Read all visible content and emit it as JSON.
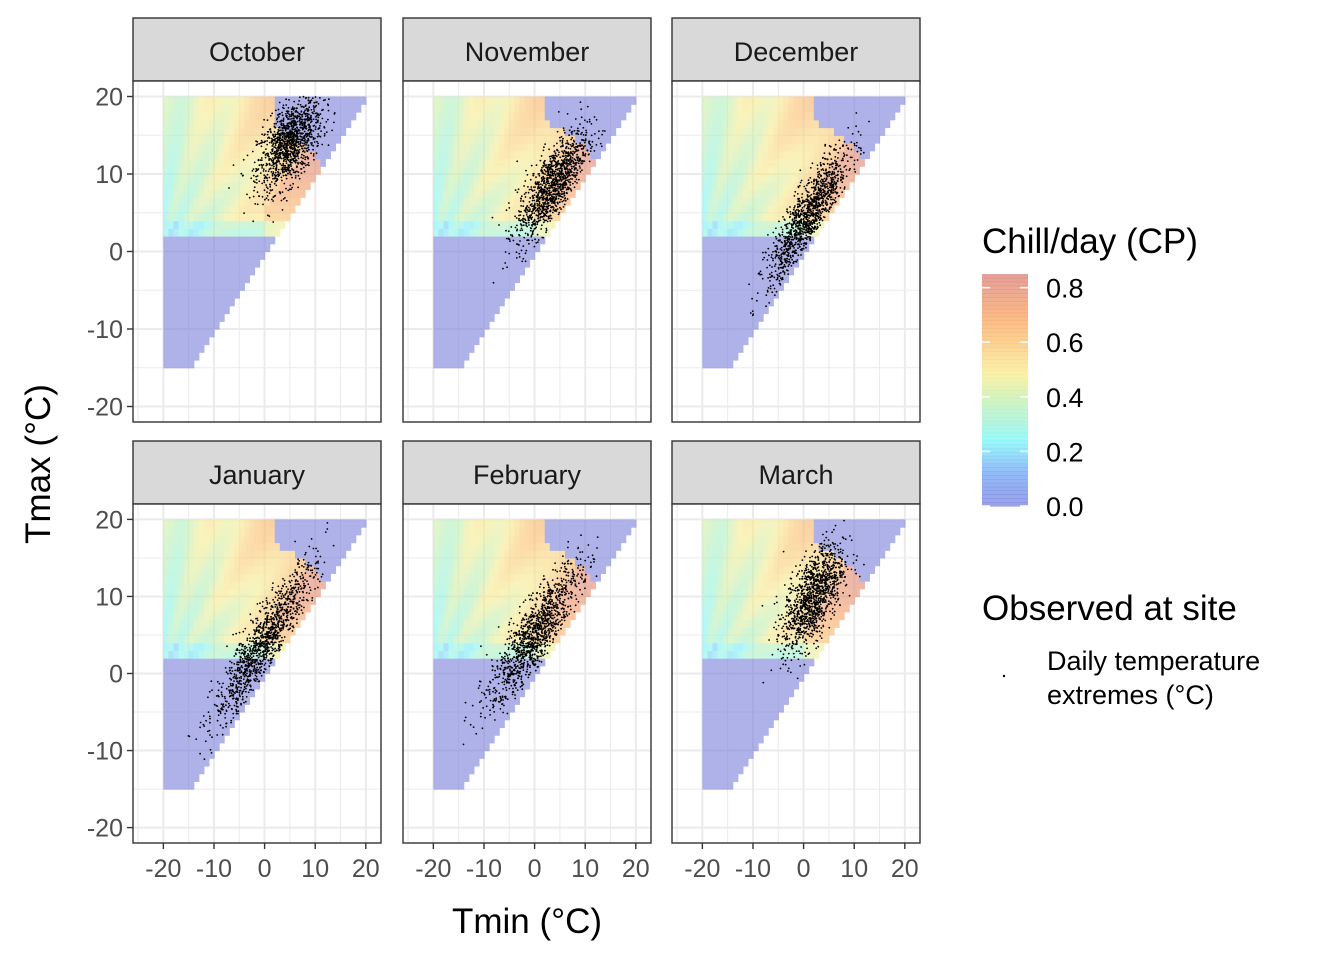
{
  "chart_data": {
    "type": "heatmap",
    "facet_labels": [
      "October",
      "November",
      "December",
      "January",
      "February",
      "March"
    ],
    "xlabel": "Tmin (°C)",
    "ylabel": "Tmax (°C)",
    "xlim": [
      -26,
      23
    ],
    "ylim": [
      -22,
      22
    ],
    "x_ticks": [
      -20,
      -10,
      0,
      10,
      20
    ],
    "x_tick_labels": [
      "-20",
      "-10",
      "0",
      "10",
      "20"
    ],
    "y_ticks": [
      -20,
      -10,
      0,
      10,
      20
    ],
    "y_tick_labels": [
      "-20",
      "-10",
      "0",
      "10",
      "20"
    ],
    "grid": true,
    "heatmap_domain": {
      "tmin_range": [
        -20,
        20
      ],
      "tmax_range": [
        -15,
        20
      ],
      "constraint": "Tmax >= Tmin",
      "zero_chill_threshold_tmax": 2.5
    },
    "color_scale": {
      "title": "Chill/day (CP)",
      "range": [
        0.0,
        0.85
      ],
      "ticks": [
        0.0,
        0.2,
        0.4,
        0.6,
        0.8
      ],
      "tick_labels": [
        "0.0",
        "0.2",
        "0.4",
        "0.6",
        "0.8"
      ],
      "colors": [
        "#7b7fdc",
        "#6ea4f7",
        "#7ff5f6",
        "#b6f0b8",
        "#f8ec8f",
        "#fbc06e",
        "#f39a63",
        "#d9807a"
      ]
    },
    "observations": {
      "legend_title": "Observed at site",
      "legend_label_lines": [
        "Daily temperature",
        "extremes (°C)"
      ],
      "point_color": "#000000",
      "panels": [
        {
          "month": "October",
          "tmin_center": 5,
          "tmax_center": 14,
          "tmin_sd": 3.2,
          "tmax_sd": 3.0,
          "correlation": 0.55,
          "n": 1200
        },
        {
          "month": "November",
          "tmin_center": 3.5,
          "tmax_center": 8.5,
          "tmin_sd": 3.5,
          "tmax_sd": 3.6,
          "correlation": 0.75,
          "n": 1200
        },
        {
          "month": "December",
          "tmin_center": 1,
          "tmax_center": 4.5,
          "tmin_sd": 4.0,
          "tmax_sd": 4.3,
          "correlation": 0.85,
          "n": 1200
        },
        {
          "month": "January",
          "tmin_center": 0,
          "tmax_center": 4,
          "tmin_sd": 5.0,
          "tmax_sd": 5.2,
          "correlation": 0.9,
          "n": 1200
        },
        {
          "month": "February",
          "tmin_center": 0,
          "tmax_center": 5,
          "tmin_sd": 4.5,
          "tmax_sd": 4.5,
          "correlation": 0.85,
          "n": 1200
        },
        {
          "month": "March",
          "tmin_center": 2,
          "tmax_center": 10,
          "tmin_sd": 3.0,
          "tmax_sd": 3.5,
          "correlation": 0.6,
          "n": 1200
        }
      ]
    }
  }
}
